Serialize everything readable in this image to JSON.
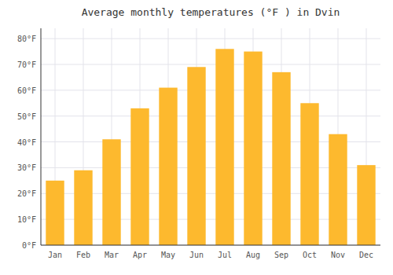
{
  "chart_data": {
    "type": "bar",
    "title": "Average monthly temperatures (°F ) in Dvin",
    "categories": [
      "Jan",
      "Feb",
      "Mar",
      "Apr",
      "May",
      "Jun",
      "Jul",
      "Aug",
      "Sep",
      "Oct",
      "Nov",
      "Dec"
    ],
    "values": [
      25,
      29,
      41,
      53,
      61,
      69,
      76,
      75,
      67,
      55,
      43,
      31
    ],
    "color": "#FDB92E",
    "ylim": [
      0,
      84
    ],
    "yticks": [
      {
        "value": 0,
        "label": "0°F"
      },
      {
        "value": 10,
        "label": "10°F"
      },
      {
        "value": 20,
        "label": "20°F"
      },
      {
        "value": 30,
        "label": "30°F"
      },
      {
        "value": 40,
        "label": "40°F"
      },
      {
        "value": 50,
        "label": "50°F"
      },
      {
        "value": 60,
        "label": "60°F"
      },
      {
        "value": 70,
        "label": "70°F"
      },
      {
        "value": 80,
        "label": "80°F"
      }
    ],
    "grid": true
  }
}
